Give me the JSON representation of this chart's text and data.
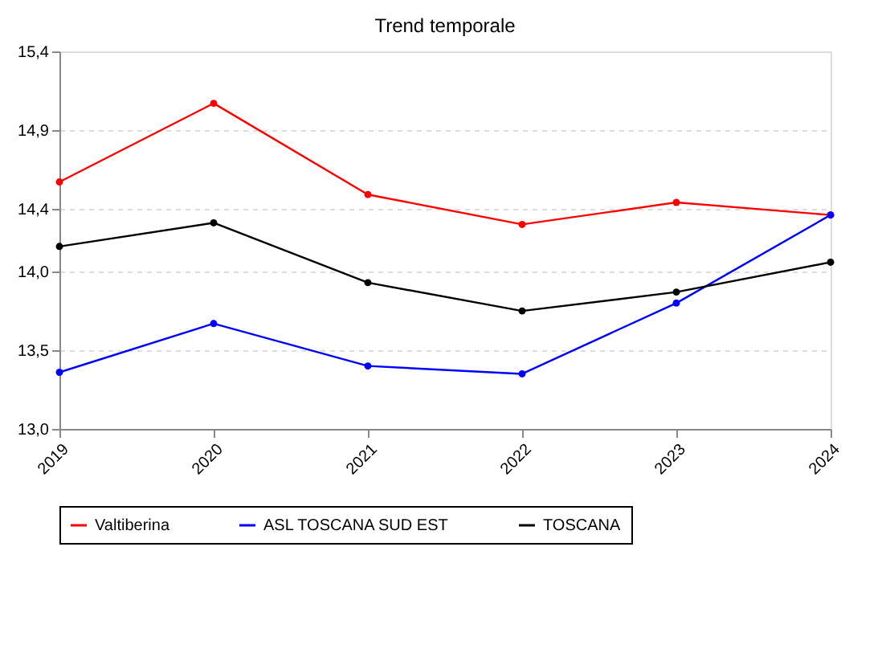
{
  "chart_data": {
    "type": "line",
    "title": "Trend temporale",
    "categories": [
      "2019",
      "2020",
      "2021",
      "2022",
      "2023",
      "2024"
    ],
    "series": [
      {
        "name": "Valtiberina",
        "color": "#ff0000",
        "values": [
          14.57,
          15.07,
          14.49,
          14.3,
          14.44,
          14.36
        ]
      },
      {
        "name": "ASL TOSCANA SUD EST",
        "color": "#0000ff",
        "values": [
          13.36,
          13.67,
          13.4,
          13.35,
          13.8,
          14.36
        ]
      },
      {
        "name": "TOSCANA",
        "color": "#000000",
        "values": [
          14.16,
          14.31,
          13.93,
          13.75,
          13.87,
          14.06
        ]
      }
    ],
    "ylim": [
      13.0,
      15.4
    ],
    "yticks": [
      {
        "value": 13.0,
        "label": "13,0"
      },
      {
        "value": 13.5,
        "label": "13,5"
      },
      {
        "value": 14.0,
        "label": "14,0"
      },
      {
        "value": 14.4,
        "label": "14,4"
      },
      {
        "value": 14.9,
        "label": "14,9"
      },
      {
        "value": 15.4,
        "label": "15,4"
      }
    ],
    "grid": "y",
    "legend": "bottom",
    "marker": "circle",
    "line_style": "solid"
  }
}
